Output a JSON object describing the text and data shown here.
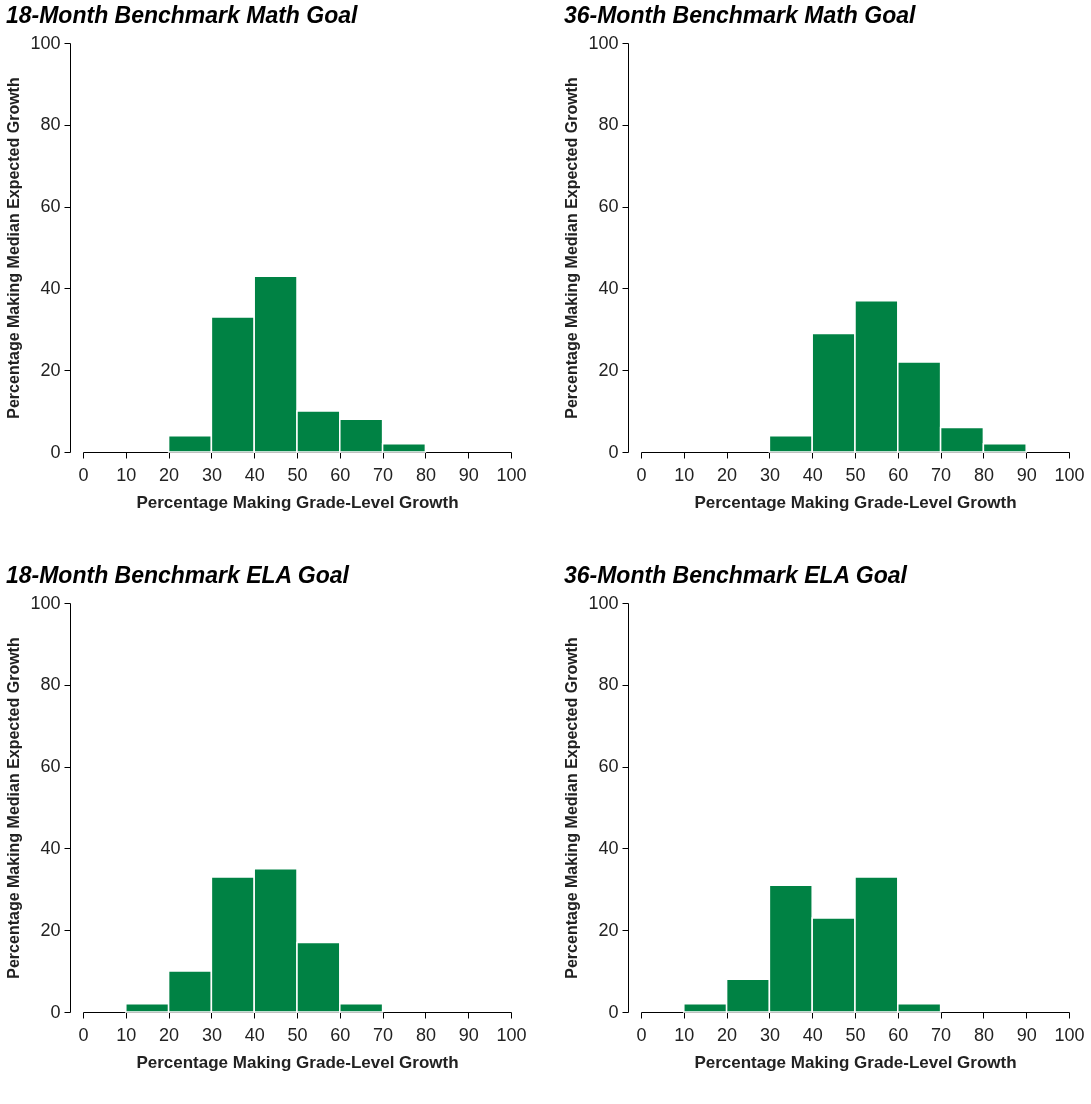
{
  "chart_data": [
    {
      "type": "histogram",
      "title": "18-Month Benchmark Math Goal",
      "xlabel": "Percentage Making Grade-Level Growth",
      "ylabel": "Percentage Making Median Expected Growth",
      "bins": [
        0,
        10,
        20,
        30,
        40,
        50,
        60,
        70,
        80,
        90,
        100
      ],
      "values": [
        0,
        0,
        4,
        33,
        43,
        10,
        8,
        2,
        0,
        0
      ],
      "color": "#008244",
      "xlim": [
        0,
        100
      ],
      "xticks": [
        0,
        10,
        20,
        30,
        40,
        50,
        60,
        70,
        80,
        90,
        100
      ],
      "ylim": [
        0,
        100
      ],
      "yticks": [
        0,
        20,
        40,
        60,
        80,
        100
      ],
      "grid": false
    },
    {
      "type": "histogram",
      "title": "36-Month Benchmark Math Goal",
      "xlabel": "Percentage Making Grade-Level Growth",
      "ylabel": "Percentage Making Median Expected Growth",
      "bins": [
        0,
        10,
        20,
        30,
        40,
        50,
        60,
        70,
        80,
        90,
        100
      ],
      "values": [
        0,
        0,
        0,
        4,
        29,
        37,
        22,
        6,
        2,
        0
      ],
      "color": "#008244",
      "xlim": [
        0,
        100
      ],
      "xticks": [
        0,
        10,
        20,
        30,
        40,
        50,
        60,
        70,
        80,
        90,
        100
      ],
      "ylim": [
        0,
        100
      ],
      "yticks": [
        0,
        20,
        40,
        60,
        80,
        100
      ],
      "grid": false
    },
    {
      "type": "histogram",
      "title": "18-Month Benchmark ELA Goal",
      "xlabel": "Percentage Making Grade-Level Growth",
      "ylabel": "Percentage Making Median Expected Growth",
      "bins": [
        0,
        10,
        20,
        30,
        40,
        50,
        60,
        70,
        80,
        90,
        100
      ],
      "values": [
        0,
        2,
        10,
        33,
        35,
        17,
        2,
        0,
        0,
        0
      ],
      "color": "#008244",
      "xlim": [
        0,
        100
      ],
      "xticks": [
        0,
        10,
        20,
        30,
        40,
        50,
        60,
        70,
        80,
        90,
        100
      ],
      "ylim": [
        0,
        100
      ],
      "yticks": [
        0,
        20,
        40,
        60,
        80,
        100
      ],
      "grid": false
    },
    {
      "type": "histogram",
      "title": "36-Month Benchmark ELA Goal",
      "xlabel": "Percentage Making Grade-Level Growth",
      "ylabel": "Percentage Making Median Expected Growth",
      "bins": [
        0,
        10,
        20,
        30,
        40,
        50,
        60,
        70,
        80,
        90,
        100
      ],
      "values": [
        0,
        2,
        8,
        31,
        23,
        33,
        2,
        0,
        0,
        0
      ],
      "color": "#008244",
      "xlim": [
        0,
        100
      ],
      "xticks": [
        0,
        10,
        20,
        30,
        40,
        50,
        60,
        70,
        80,
        90,
        100
      ],
      "ylim": [
        0,
        100
      ],
      "yticks": [
        0,
        20,
        40,
        60,
        80,
        100
      ],
      "grid": false
    }
  ]
}
